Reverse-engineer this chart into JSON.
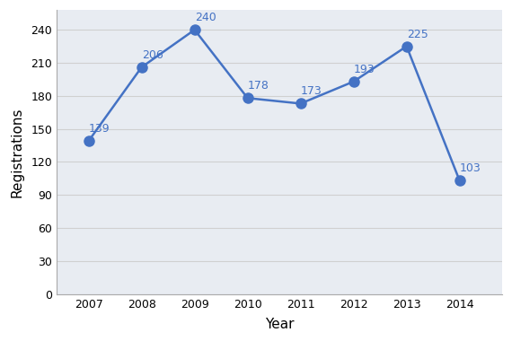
{
  "years": [
    2007,
    2008,
    2009,
    2010,
    2011,
    2012,
    2013,
    2014
  ],
  "values": [
    139,
    206,
    240,
    178,
    173,
    193,
    225,
    103
  ],
  "line_color": "#4472c4",
  "marker_color": "#4472c4",
  "xlabel": "Year",
  "ylabel": "Registrations",
  "ylim": [
    0,
    258
  ],
  "yticks": [
    0,
    30,
    60,
    90,
    120,
    150,
    180,
    210,
    240
  ],
  "grid_color": "#d0d0d0",
  "plot_bg_color": "#e8ecf2",
  "outer_bg_color": "#ffffff",
  "marker_size": 8,
  "linewidth": 1.8,
  "label_fontsize": 9,
  "axis_label_fontsize": 11,
  "tick_fontsize": 9
}
